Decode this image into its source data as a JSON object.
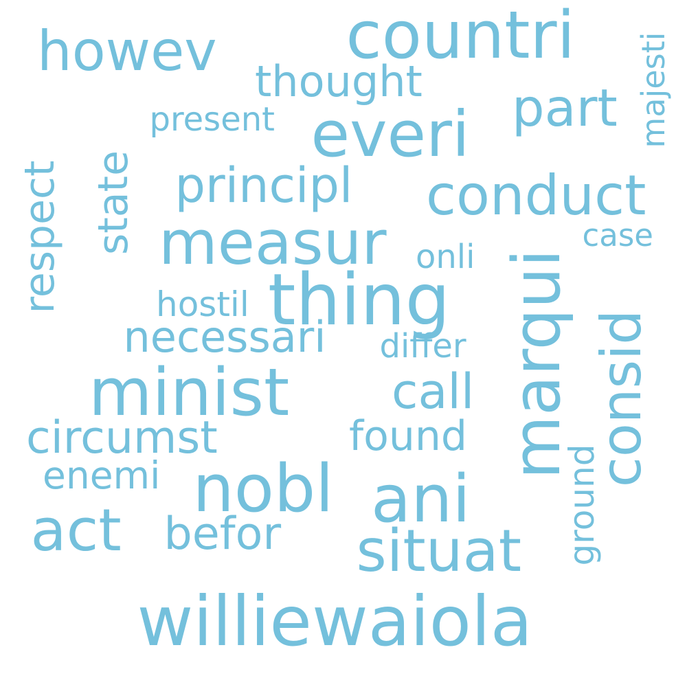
{
  "word_cloud": {
    "color": "#74c0dc",
    "background": "#ffffff",
    "words": [
      {
        "text": "williewaiola",
        "orientation": "horizontal"
      },
      {
        "text": "countri",
        "orientation": "horizontal"
      },
      {
        "text": "howev",
        "orientation": "horizontal"
      },
      {
        "text": "thought",
        "orientation": "horizontal"
      },
      {
        "text": "part",
        "orientation": "horizontal"
      },
      {
        "text": "majesti",
        "orientation": "vertical"
      },
      {
        "text": "present",
        "orientation": "horizontal"
      },
      {
        "text": "everi",
        "orientation": "horizontal"
      },
      {
        "text": "state",
        "orientation": "vertical"
      },
      {
        "text": "respect",
        "orientation": "vertical"
      },
      {
        "text": "principl",
        "orientation": "horizontal"
      },
      {
        "text": "conduct",
        "orientation": "horizontal"
      },
      {
        "text": "measur",
        "orientation": "horizontal"
      },
      {
        "text": "case",
        "orientation": "horizontal"
      },
      {
        "text": "onli",
        "orientation": "horizontal"
      },
      {
        "text": "marqui",
        "orientation": "vertical"
      },
      {
        "text": "thing",
        "orientation": "horizontal"
      },
      {
        "text": "hostil",
        "orientation": "horizontal"
      },
      {
        "text": "consid",
        "orientation": "vertical"
      },
      {
        "text": "necessari",
        "orientation": "horizontal"
      },
      {
        "text": "differ",
        "orientation": "horizontal"
      },
      {
        "text": "minist",
        "orientation": "horizontal"
      },
      {
        "text": "call",
        "orientation": "horizontal"
      },
      {
        "text": "circumst",
        "orientation": "horizontal"
      },
      {
        "text": "found",
        "orientation": "horizontal"
      },
      {
        "text": "ground",
        "orientation": "vertical"
      },
      {
        "text": "enemi",
        "orientation": "horizontal"
      },
      {
        "text": "nobl",
        "orientation": "horizontal"
      },
      {
        "text": "ani",
        "orientation": "horizontal"
      },
      {
        "text": "act",
        "orientation": "horizontal"
      },
      {
        "text": "befor",
        "orientation": "horizontal"
      },
      {
        "text": "situat",
        "orientation": "horizontal"
      }
    ]
  }
}
